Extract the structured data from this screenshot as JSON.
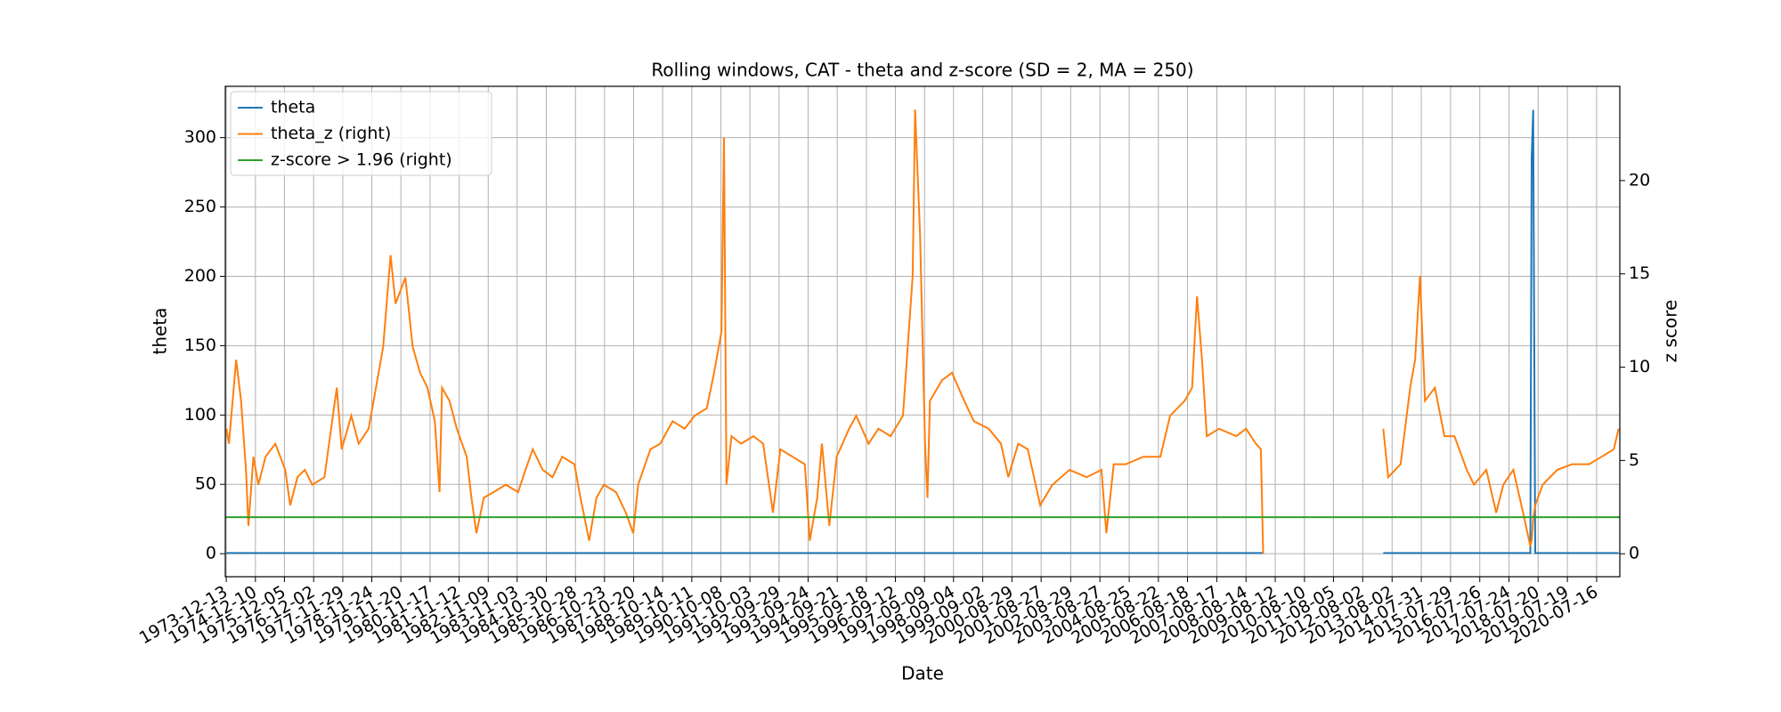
{
  "chart_data": {
    "type": "line",
    "title": "Rolling windows, CAT - theta and z-score (SD = 2, MA = 250)",
    "xlabel": "Date",
    "ylabel": "theta",
    "y2label": "z score",
    "grid": true,
    "legend": "upper left",
    "xlim": [
      "1973-12-01",
      "2021-04-30"
    ],
    "ylim": [
      -16.6,
      337
    ],
    "y2lim": [
      -1.23,
      25.05
    ],
    "yticks": [
      0,
      50,
      100,
      150,
      200,
      250,
      300
    ],
    "y2ticks": [
      0,
      5,
      10,
      15,
      20
    ],
    "xticks": [
      "1973-12-13",
      "1974-12-10",
      "1975-12-05",
      "1976-12-02",
      "1977-11-29",
      "1978-11-24",
      "1979-11-20",
      "1980-11-17",
      "1981-11-12",
      "1982-11-09",
      "1983-11-03",
      "1984-10-30",
      "1985-10-28",
      "1986-10-23",
      "1987-10-20",
      "1988-10-14",
      "1989-10-11",
      "1990-10-08",
      "1991-10-03",
      "1992-09-29",
      "1993-09-24",
      "1994-09-21",
      "1995-09-18",
      "1996-09-12",
      "1997-09-09",
      "1998-09-04",
      "1999-09-02",
      "2000-08-29",
      "2001-08-27",
      "2002-08-29",
      "2003-08-27",
      "2004-08-25",
      "2005-08-22",
      "2006-08-18",
      "2007-08-17",
      "2008-08-14",
      "2009-08-12",
      "2010-08-10",
      "2011-08-05",
      "2012-08-02",
      "2013-08-02",
      "2014-07-31",
      "2015-07-29",
      "2016-07-26",
      "2017-07-24",
      "2018-07-20",
      "2019-07-19",
      "2020-07-16"
    ],
    "x": [
      "1973-12-15",
      "1974-01-15",
      "1974-04-15",
      "1974-06-15",
      "1974-08-15",
      "1974-09-15",
      "1974-11-15",
      "1975-01-15",
      "1975-04-15",
      "1975-08-15",
      "1975-12-15",
      "1976-02-15",
      "1976-05-15",
      "1976-08-15",
      "1976-11-15",
      "1977-04-15",
      "1977-09-15",
      "1977-11-15",
      "1978-03-15",
      "1978-06-15",
      "1978-10-15",
      "1979-01-15",
      "1979-04-15",
      "1979-07-15",
      "1979-09-15",
      "1980-01-15",
      "1980-04-15",
      "1980-07-15",
      "1980-10-15",
      "1981-01-15",
      "1981-03-15",
      "1981-04-15",
      "1981-07-15",
      "1981-10-15",
      "1982-02-15",
      "1982-04-15",
      "1982-06-15",
      "1982-09-15",
      "1983-01-15",
      "1983-06-15",
      "1983-11-15",
      "1984-02-15",
      "1984-05-15",
      "1984-09-15",
      "1985-01-15",
      "1985-05-15",
      "1985-10-15",
      "1985-12-15",
      "1986-04-15",
      "1986-07-15",
      "1986-10-15",
      "1987-03-15",
      "1987-07-15",
      "1987-10-15",
      "1987-12-15",
      "1988-05-15",
      "1988-09-15",
      "1989-02-15",
      "1989-07-15",
      "1989-11-15",
      "1990-04-15",
      "1990-07-15",
      "1990-10-15",
      "1990-11-15",
      "1990-12-15",
      "1991-02-15",
      "1991-06-15",
      "1991-11-15",
      "1992-03-15",
      "1992-07-15",
      "1992-10-15",
      "1993-03-15",
      "1993-08-15",
      "1993-10-15",
      "1994-01-15",
      "1994-03-15",
      "1994-06-15",
      "1994-09-15",
      "1995-02-15",
      "1995-05-15",
      "1995-10-15",
      "1996-02-15",
      "1996-07-15",
      "1996-12-15",
      "1997-04-15",
      "1997-05-15",
      "1997-07-15",
      "1997-09-15",
      "1997-10-15",
      "1997-11-15",
      "1998-04-15",
      "1998-08-15",
      "1999-01-15",
      "1999-05-15",
      "1999-11-15",
      "2000-04-15",
      "2000-07-15",
      "2000-11-15",
      "2001-03-15",
      "2001-08-15",
      "2002-01-15",
      "2002-08-15",
      "2003-03-15",
      "2003-09-15",
      "2003-11-15",
      "2004-02-15",
      "2004-07-15",
      "2005-02-15",
      "2005-09-15",
      "2006-01-15",
      "2006-07-15",
      "2006-10-15",
      "2006-12-15",
      "2007-02-15",
      "2007-04-15",
      "2007-09-15",
      "2008-04-15",
      "2008-08-15",
      "2008-12-15",
      "2009-02-15",
      "2009-03-15",
      "2011-06-15",
      "2013-04-15",
      "2013-06-15",
      "2013-11-15",
      "2014-03-15",
      "2014-05-15",
      "2014-07-15",
      "2014-09-15",
      "2015-01-15",
      "2015-05-15",
      "2015-09-15",
      "2016-02-15",
      "2016-05-15",
      "2016-10-15",
      "2017-02-15",
      "2017-05-15",
      "2017-09-15",
      "2018-01-15",
      "2018-04-15",
      "2018-05-01",
      "2018-05-20",
      "2018-06-15",
      "2018-09-15",
      "2019-03-15",
      "2019-09-15",
      "2020-04-15",
      "2020-09-15",
      "2021-02-15",
      "2021-04-15"
    ],
    "series": [
      {
        "name": "theta",
        "color": "#1f77b4",
        "axis": "y",
        "values": [
          0.5,
          0.5,
          0.5,
          0.5,
          0.5,
          0.5,
          0.5,
          0.5,
          0.5,
          0.5,
          0.5,
          0.5,
          0.5,
          0.5,
          0.5,
          0.5,
          0.5,
          0.5,
          0.5,
          0.5,
          0.5,
          0.5,
          0.5,
          0.5,
          0.5,
          0.5,
          0.5,
          0.5,
          0.5,
          0.5,
          0.5,
          0.5,
          0.5,
          0.5,
          0.5,
          0.5,
          0.5,
          0.5,
          0.5,
          0.5,
          0.5,
          0.5,
          0.5,
          0.5,
          0.5,
          0.5,
          0.5,
          0.5,
          0.5,
          0.5,
          0.5,
          0.5,
          0.5,
          0.5,
          0.5,
          0.5,
          0.5,
          0.5,
          0.5,
          0.5,
          0.5,
          0.5,
          0.5,
          0.5,
          0.5,
          0.5,
          0.5,
          0.5,
          0.5,
          0.5,
          0.5,
          0.5,
          0.5,
          0.5,
          0.5,
          0.5,
          0.5,
          0.5,
          0.5,
          0.5,
          0.5,
          0.5,
          0.5,
          0.5,
          0.5,
          0.5,
          0.5,
          0.5,
          0.5,
          0.5,
          0.5,
          0.5,
          0.5,
          0.5,
          0.5,
          0.5,
          0.5,
          0.5,
          0.5,
          0.5,
          0.5,
          0.5,
          0.5,
          0.5,
          0.5,
          0.5,
          0.5,
          0.5,
          0.5,
          0.5,
          0.5,
          0.5,
          0.5,
          0.5,
          0.5,
          0.5,
          0.5,
          0.5,
          0.5,
          0.5,
          0.5,
          null,
          0.5,
          0.5,
          0.5,
          0.5,
          0.5,
          0.5,
          0.5,
          0.5,
          0.5,
          0.5,
          0.5,
          0.5,
          0.5,
          0.5,
          0.5,
          0.5,
          0.5,
          0.5,
          285,
          320,
          0.5,
          0.5,
          0.5,
          0.5,
          0.5,
          0.5,
          0.5,
          0.5
        ]
      },
      {
        "name": "theta_z (right)",
        "color": "#ff7f0e",
        "axis": "y2",
        "values": [
          6.7,
          5.9,
          10.4,
          8.2,
          4.5,
          1.5,
          5.2,
          3.7,
          5.2,
          5.9,
          4.5,
          2.6,
          4.1,
          4.5,
          3.7,
          4.1,
          8.9,
          5.6,
          7.4,
          5.9,
          6.7,
          8.9,
          11.1,
          16.0,
          13.4,
          14.8,
          11.1,
          9.7,
          8.9,
          7.1,
          3.3,
          8.9,
          8.2,
          6.7,
          5.2,
          3.0,
          1.1,
          3.0,
          3.3,
          3.7,
          3.3,
          4.5,
          5.6,
          4.5,
          4.1,
          5.2,
          4.8,
          3.3,
          0.7,
          3.0,
          3.7,
          3.3,
          2.2,
          1.1,
          3.7,
          5.6,
          5.9,
          7.1,
          6.7,
          7.4,
          7.8,
          9.7,
          11.9,
          22.3,
          3.7,
          6.3,
          5.9,
          6.3,
          5.9,
          2.2,
          5.6,
          5.2,
          4.8,
          0.7,
          3.0,
          5.9,
          1.5,
          5.2,
          6.7,
          7.4,
          5.9,
          6.7,
          6.3,
          7.4,
          14.9,
          23.8,
          17.1,
          5.9,
          3.0,
          8.2,
          9.3,
          9.7,
          8.2,
          7.1,
          6.7,
          5.9,
          4.1,
          5.9,
          5.6,
          2.6,
          3.7,
          4.5,
          4.1,
          4.5,
          1.1,
          4.8,
          4.8,
          5.2,
          5.2,
          7.4,
          8.2,
          8.9,
          13.8,
          10.4,
          6.3,
          6.7,
          6.3,
          6.7,
          5.9,
          5.6,
          0.0,
          null,
          6.7,
          4.1,
          4.8,
          8.9,
          10.4,
          14.9,
          8.2,
          8.9,
          6.3,
          6.3,
          4.5,
          3.7,
          4.5,
          2.2,
          3.7,
          4.5,
          2.2,
          0.4,
          0.7,
          1.9,
          2.6,
          3.7,
          4.5,
          4.8,
          4.8,
          5.2,
          5.6,
          6.7
        ]
      },
      {
        "name": "z-score > 1.96 (right)",
        "color": "#2ca02c",
        "axis": "y2",
        "x": [
          "1973-12-01",
          "2021-04-30"
        ],
        "values": [
          1.96,
          1.96
        ]
      }
    ]
  }
}
